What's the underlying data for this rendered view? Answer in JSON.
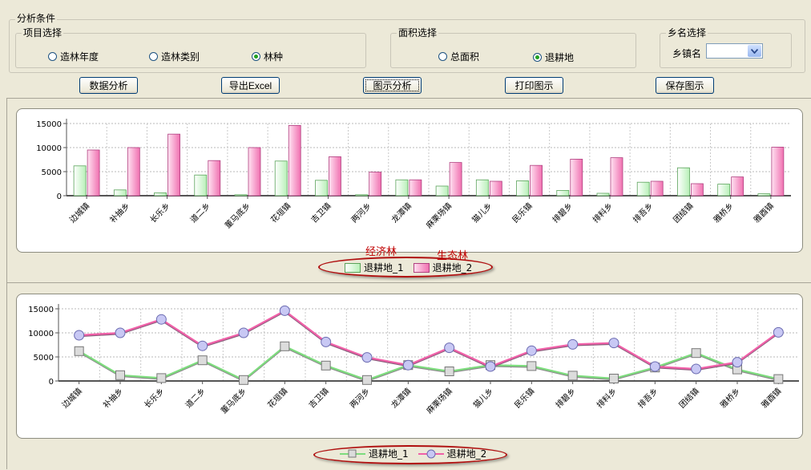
{
  "conditions": {
    "title": "分析条件",
    "project": {
      "title": "项目选择",
      "options": [
        {
          "label": "造林年度",
          "checked": false
        },
        {
          "label": "造林类别",
          "checked": false
        },
        {
          "label": "林种",
          "checked": true
        }
      ]
    },
    "area": {
      "title": "面积选择",
      "options": [
        {
          "label": "总面积",
          "checked": false
        },
        {
          "label": "退耕地",
          "checked": true
        }
      ]
    },
    "town": {
      "title": "乡名选择",
      "label": "乡镇名",
      "value": ""
    }
  },
  "toolbar": {
    "analyze": "数据分析",
    "export": "导出Excel",
    "chart": "图示分析",
    "print": "打印图示",
    "save": "保存图示"
  },
  "annotations": {
    "series1": "经济林",
    "series2": "生态林"
  },
  "colors": {
    "series1": "#b8f0b8",
    "series2": "#f070b0",
    "annotation": "#c00000"
  },
  "chart_data": [
    {
      "type": "bar",
      "categories": [
        "边城镇",
        "补抽乡",
        "长乐乡",
        "道二乡",
        "董马底乡",
        "花垣镇",
        "吉卫镇",
        "两河乡",
        "龙潭镇",
        "麻栗场镇",
        "猫儿乡",
        "民乐镇",
        "排碧乡",
        "排料乡",
        "排吾乡",
        "团结镇",
        "雅桥乡",
        "雅酉镇"
      ],
      "series": [
        {
          "name": "退耕地_1",
          "values": [
            6200,
            1200,
            600,
            4300,
            200,
            7200,
            3200,
            200,
            3300,
            2000,
            3300,
            3100,
            1100,
            500,
            2800,
            5800,
            2400,
            400
          ]
        },
        {
          "name": "退耕地_2",
          "values": [
            9500,
            10000,
            12800,
            7300,
            10000,
            14600,
            8100,
            4900,
            3300,
            6900,
            3000,
            6300,
            7600,
            7900,
            3000,
            2500,
            3900,
            10100
          ]
        }
      ],
      "ylim": [
        0,
        15000
      ],
      "yticks": [
        0,
        5000,
        10000,
        15000
      ],
      "grid": true,
      "legend": "bottom-center"
    },
    {
      "type": "line",
      "categories": [
        "边城镇",
        "补抽乡",
        "长乐乡",
        "道二乡",
        "董马底乡",
        "花垣镇",
        "吉卫镇",
        "两河乡",
        "龙潭镇",
        "麻栗场镇",
        "猫儿乡",
        "民乐镇",
        "排碧乡",
        "排料乡",
        "排吾乡",
        "团结镇",
        "雅桥乡",
        "雅酉镇"
      ],
      "series": [
        {
          "name": "退耕地_1",
          "values": [
            6200,
            1200,
            600,
            4300,
            200,
            7200,
            3200,
            200,
            3300,
            2000,
            3300,
            3100,
            1100,
            500,
            2800,
            5800,
            2400,
            400
          ]
        },
        {
          "name": "退耕地_2",
          "values": [
            9500,
            10000,
            12800,
            7300,
            10000,
            14600,
            8100,
            4900,
            3300,
            6900,
            3000,
            6300,
            7600,
            7900,
            3000,
            2500,
            3900,
            10100
          ]
        }
      ],
      "ylim": [
        0,
        15000
      ],
      "yticks": [
        0,
        5000,
        10000,
        15000
      ],
      "grid": true,
      "legend": "bottom-center"
    }
  ]
}
